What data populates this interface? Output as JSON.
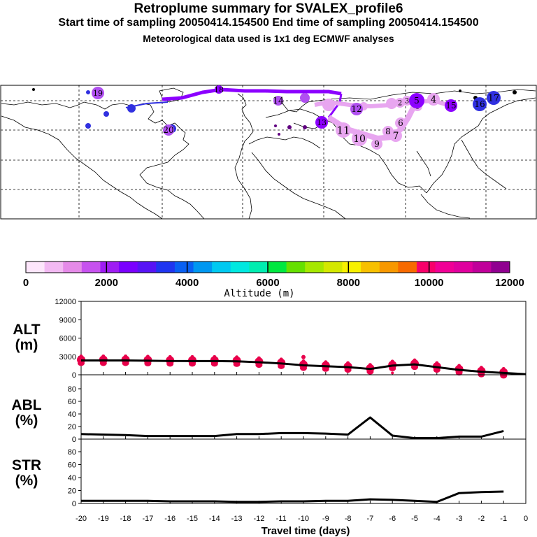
{
  "header": {
    "title": "Retroplume summary for SVALEX_profile6",
    "subtitle": "Start time of sampling 20050414.154500     End time of sampling 20050414.154500",
    "subtitle2": "Meteorological data used is 1x1 deg ECMWF analyses"
  },
  "map": {
    "day_labels": [
      "1",
      "2",
      "3",
      "4",
      "5",
      "6",
      "7",
      "8",
      "9",
      "10",
      "11",
      "12",
      "13",
      "14",
      "15",
      "16",
      "17",
      "18",
      "19",
      "20"
    ],
    "colors": {
      "light": "#e8a6f0",
      "mid": "#b050f0",
      "violet": "#8c00ff",
      "blue": "#3030e0"
    }
  },
  "colorbar": {
    "ticks": [
      "0",
      "2000",
      "4000",
      "6000",
      "8000",
      "10000",
      "12000"
    ],
    "label": "Altitude (m)",
    "colors": [
      "#fde6fb",
      "#f2b9f2",
      "#e58ae8",
      "#c752ef",
      "#9f1cf3",
      "#7a00ff",
      "#5713f5",
      "#1f35f0",
      "#0960f3",
      "#0097f0",
      "#00c9f0",
      "#00e8e0",
      "#00edb0",
      "#00e840",
      "#66e000",
      "#a6e800",
      "#d4e800",
      "#f8f000",
      "#f8c000",
      "#f89800",
      "#f86a00",
      "#f8006a",
      "#f00096",
      "#e0009e",
      "#c0009a",
      "#900090"
    ]
  },
  "chart_data": [
    {
      "type": "line",
      "title": "ALT",
      "ylabel": "ALT (m)",
      "ylim": [
        0,
        12000
      ],
      "yticks": [
        "0",
        "3000",
        "6000",
        "9000",
        "12000"
      ],
      "x": [
        -20,
        -19,
        -18,
        -17,
        -16,
        -15,
        -14,
        -13,
        -12,
        -11,
        -10,
        -9,
        -8,
        -7,
        -6,
        -5,
        -4,
        -3,
        -2,
        -1,
        0
      ],
      "values": [
        2350,
        2350,
        2350,
        2300,
        2250,
        2250,
        2250,
        2200,
        2050,
        1850,
        1550,
        1400,
        1250,
        950,
        1500,
        1700,
        1250,
        800,
        500,
        300,
        100
      ],
      "scatter_color": "#e8004a"
    },
    {
      "type": "line",
      "title": "ABL",
      "ylabel": "ABL (%)",
      "ylim": [
        0,
        100
      ],
      "yticks": [
        "0",
        "20",
        "40",
        "60",
        "80"
      ],
      "x": [
        -20,
        -19,
        -18,
        -17,
        -16,
        -15,
        -14,
        -13,
        -12,
        -11,
        -10,
        -9,
        -8,
        -7,
        -6,
        -5,
        -4,
        -3,
        -2,
        -1
      ],
      "values": [
        10,
        9,
        8,
        6,
        6,
        6,
        6,
        10,
        10,
        12,
        12,
        11,
        9,
        43,
        7,
        2,
        2,
        5,
        5,
        16
      ]
    },
    {
      "type": "line",
      "title": "STR",
      "ylabel": "STR (%)",
      "ylim": [
        0,
        100
      ],
      "yticks": [
        "0",
        "20",
        "40",
        "60",
        "80"
      ],
      "x": [
        -20,
        -19,
        -18,
        -17,
        -16,
        -15,
        -14,
        -13,
        -12,
        -11,
        -10,
        -9,
        -8,
        -7,
        -6,
        -5,
        -4,
        -3,
        -2,
        -1
      ],
      "values": [
        5,
        5,
        5,
        5,
        4,
        4,
        4,
        3,
        3,
        4,
        4,
        5,
        5,
        8,
        7,
        5,
        3,
        20,
        22,
        23
      ]
    }
  ],
  "xaxis": {
    "ticks": [
      "-20",
      "-19",
      "-18",
      "-17",
      "-16",
      "-15",
      "-14",
      "-13",
      "-12",
      "-11",
      "-10",
      "-9",
      "-8",
      "-7",
      "-6",
      "-5",
      "-4",
      "-3",
      "-2",
      "-1",
      "0"
    ],
    "label": "Travel time (days)"
  },
  "panels": {
    "alt": {
      "label1": "ALT",
      "label2": "(m)"
    },
    "abl": {
      "label1": "ABL",
      "label2": "(%)"
    },
    "str": {
      "label1": "STR",
      "label2": "(%)"
    }
  }
}
